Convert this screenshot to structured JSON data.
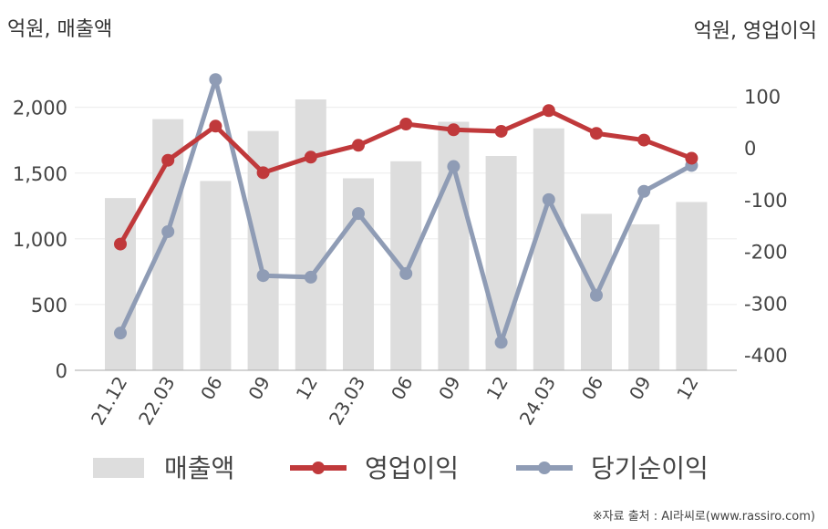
{
  "header": {
    "left_unit": "억원, 매출액",
    "right_unit": "억원, 영업이익"
  },
  "source": "※자료 출처 : AI라씨로(www.rassiro.com)",
  "chart_data": {
    "type": "bar",
    "categories": [
      "21.12",
      "22.03",
      "06",
      "09",
      "12",
      "23.03",
      "06",
      "09",
      "12",
      "24.03",
      "06",
      "09",
      "12"
    ],
    "series": [
      {
        "name": "매출액",
        "type": "bar",
        "axis": "left",
        "color": "#dddddd",
        "values": [
          1310,
          1910,
          1440,
          1820,
          2060,
          1460,
          1590,
          1890,
          1630,
          1840,
          1190,
          1110,
          1280
        ]
      },
      {
        "name": "영업이익",
        "type": "line",
        "axis": "right",
        "color": "#c0393b",
        "values": [
          -186,
          -24,
          42,
          -48,
          -18,
          5,
          46,
          35,
          32,
          72,
          28,
          15,
          -20
        ]
      },
      {
        "name": "당기순이익",
        "type": "line",
        "axis": "right",
        "color": "#8f9cb5",
        "values": [
          -358,
          -162,
          132,
          -247,
          -250,
          -127,
          -243,
          -36,
          -376,
          -100,
          -285,
          -84,
          -34
        ]
      }
    ],
    "left_axis": {
      "ylim": [
        0,
        2400
      ],
      "ticks": [
        0,
        500,
        1000,
        1500,
        2000
      ],
      "tick_labels": [
        "0",
        "500",
        "1,000",
        "1,500",
        "2,000"
      ]
    },
    "right_axis": {
      "ylim": [
        -430,
        180
      ],
      "ticks": [
        -400,
        -300,
        -200,
        -100,
        0,
        100
      ],
      "tick_labels": [
        "-400",
        "-300",
        "-200",
        "-100",
        "0",
        "100"
      ]
    },
    "grid": true,
    "legend_position": "bottom"
  }
}
